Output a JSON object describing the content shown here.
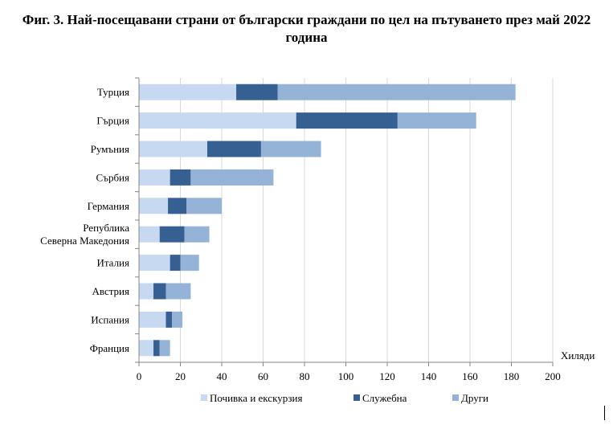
{
  "title": "Фиг. 3. Най-посещавани страни от български граждани по цел на пътуването през май 2022 година",
  "chart_data": {
    "type": "bar",
    "orientation": "horizontal",
    "stacked": true,
    "categories": [
      "Турция",
      "Гърция",
      "Румъния",
      "Сърбия",
      "Германия",
      "Република Северна Македония",
      "Италия",
      "Австрия",
      "Испания",
      "Франция"
    ],
    "category_lines": [
      [
        "Турция"
      ],
      [
        "Гърция"
      ],
      [
        "Румъния"
      ],
      [
        "Сърбия"
      ],
      [
        "Германия"
      ],
      [
        "Република",
        "Северна Македония"
      ],
      [
        "Италия"
      ],
      [
        "Австрия"
      ],
      [
        "Испания"
      ],
      [
        "Франция"
      ]
    ],
    "series": [
      {
        "name": "Почивка и екскурзия",
        "color": "#c6d9f1",
        "values": [
          47,
          76,
          33,
          15,
          14,
          10,
          15,
          7,
          13,
          7
        ]
      },
      {
        "name": "Служебна",
        "color": "#376092",
        "values": [
          20,
          49,
          26,
          10,
          9,
          12,
          5,
          6,
          3,
          3
        ]
      },
      {
        "name": "Други",
        "color": "#95b3d7",
        "values": [
          115,
          38,
          29,
          40,
          17,
          12,
          9,
          12,
          5,
          5
        ]
      }
    ],
    "x_ticks": [
      0,
      20,
      40,
      60,
      80,
      100,
      120,
      140,
      160,
      180,
      200
    ],
    "xlim": [
      0,
      200
    ],
    "unit_label": "Хиляди",
    "grid": "vertical",
    "legend_position": "bottom"
  }
}
